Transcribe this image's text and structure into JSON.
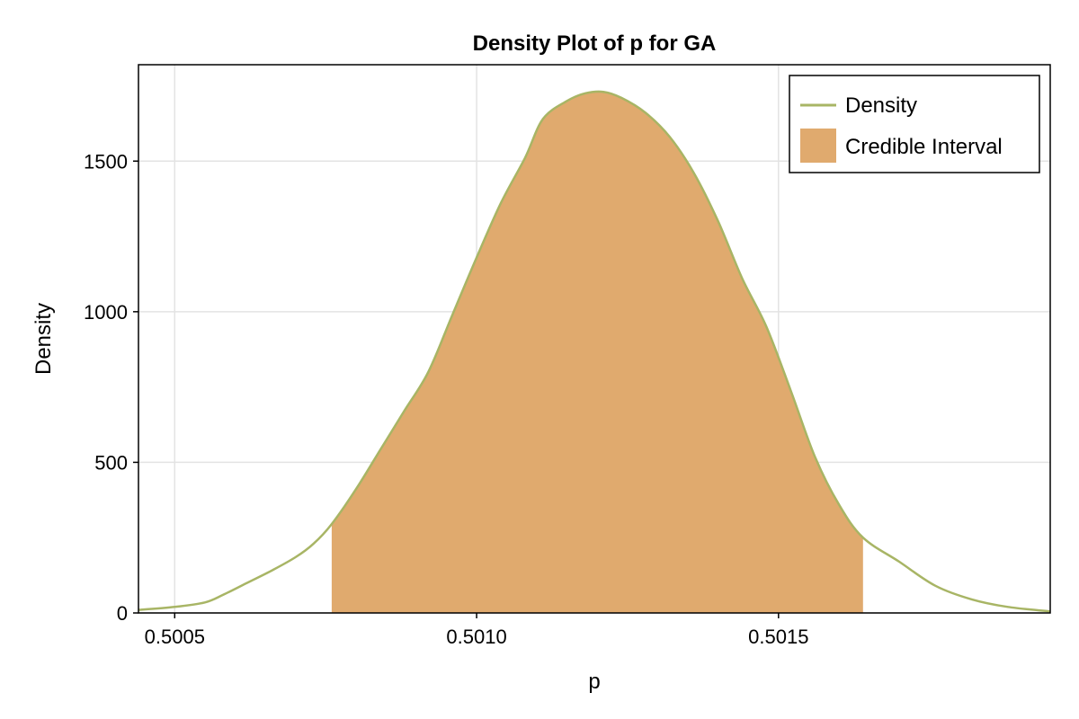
{
  "chart_data": {
    "type": "area",
    "title": "Density Plot of p for GA",
    "xlabel": "p",
    "ylabel": "Density",
    "xlim": [
      0.50044,
      0.50195
    ],
    "ylim": [
      0,
      1820
    ],
    "x_ticks": [
      0.5005,
      0.501,
      0.5015
    ],
    "x_tick_labels": [
      "0.5005",
      "0.5010",
      "0.5015"
    ],
    "y_ticks": [
      0,
      500,
      1000,
      1500
    ],
    "y_tick_labels": [
      "0",
      "500",
      "1000",
      "1500"
    ],
    "grid": true,
    "legend": {
      "position": "top-right",
      "entries": [
        {
          "label": "Density",
          "kind": "line",
          "color": "#a8b565"
        },
        {
          "label": "Credible Interval",
          "kind": "patch",
          "color": "#e0aa6e"
        }
      ]
    },
    "series": [
      {
        "name": "Density",
        "color": "#a8b565",
        "x": [
          0.50044,
          0.5005,
          0.50055,
          0.50058,
          0.50062,
          0.50066,
          0.5007,
          0.50073,
          0.50076,
          0.5008,
          0.50084,
          0.50088,
          0.50092,
          0.50096,
          0.501,
          0.50104,
          0.50108,
          0.50111,
          0.50115,
          0.50118,
          0.50121,
          0.50124,
          0.50128,
          0.50132,
          0.50136,
          0.5014,
          0.50144,
          0.50148,
          0.50152,
          0.50156,
          0.5016,
          0.50164,
          0.5017,
          0.50176,
          0.50182,
          0.50188,
          0.50195
        ],
        "y": [
          10,
          20,
          35,
          60,
          100,
          140,
          185,
          230,
          295,
          410,
          540,
          670,
          800,
          990,
          1180,
          1360,
          1510,
          1640,
          1700,
          1725,
          1730,
          1710,
          1660,
          1580,
          1460,
          1300,
          1110,
          950,
          740,
          520,
          360,
          250,
          170,
          90,
          45,
          20,
          5
        ]
      }
    ],
    "credible_interval": {
      "label": "Credible Interval",
      "color": "#e0aa6e",
      "lower": 0.50076,
      "upper": 0.50164
    }
  }
}
